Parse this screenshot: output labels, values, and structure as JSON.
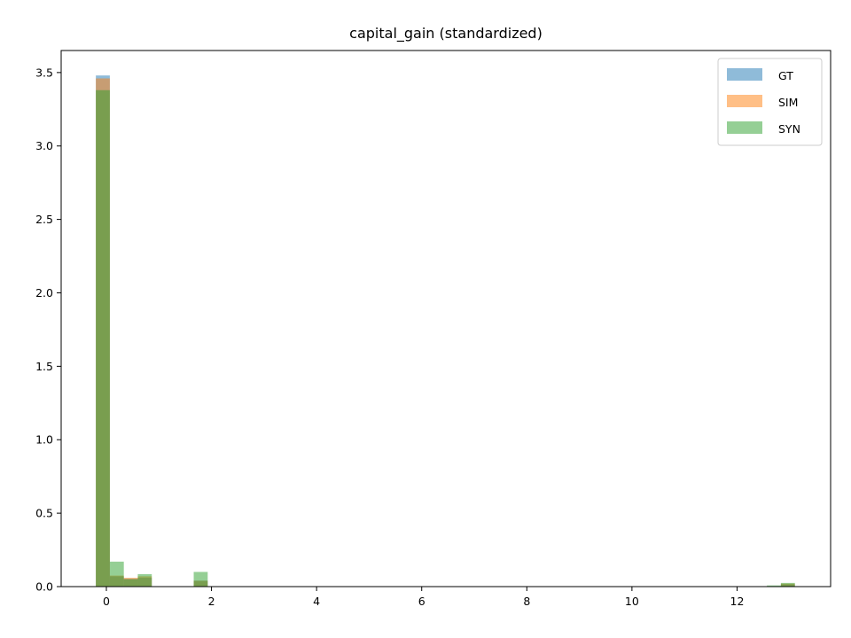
{
  "chart_data": {
    "type": "bar",
    "title": "capital_gain (standardized)",
    "xlabel": "",
    "ylabel": "",
    "xlim": [
      -0.86,
      13.78
    ],
    "ylim": [
      0,
      3.65
    ],
    "xticks": [
      0,
      2,
      4,
      6,
      8,
      10,
      12
    ],
    "yticks": [
      0.0,
      0.5,
      1.0,
      1.5,
      2.0,
      2.5,
      3.0,
      3.5
    ],
    "ytick_labels": [
      "0.0",
      "0.5",
      "1.0",
      "1.5",
      "2.0",
      "2.5",
      "3.0",
      "3.5"
    ],
    "bin_width": 0.266,
    "grid": false,
    "legend_position": "top-right",
    "bin_starts": [
      -0.2,
      0.066,
      0.332,
      0.598,
      1.662,
      12.568,
      12.834
    ],
    "series": [
      {
        "name": "GT",
        "color": "#1f77b4",
        "values": [
          3.48,
          0.07,
          0.055,
          0.06,
          0.04,
          0.0,
          0.015
        ]
      },
      {
        "name": "SIM",
        "color": "#ff7f0e",
        "values": [
          3.46,
          0.075,
          0.06,
          0.07,
          0.04,
          0.0,
          0.02
        ]
      },
      {
        "name": "SYN",
        "color": "#2ca02c",
        "values": [
          3.38,
          0.17,
          0.05,
          0.085,
          0.1,
          0.008,
          0.025
        ]
      }
    ]
  }
}
